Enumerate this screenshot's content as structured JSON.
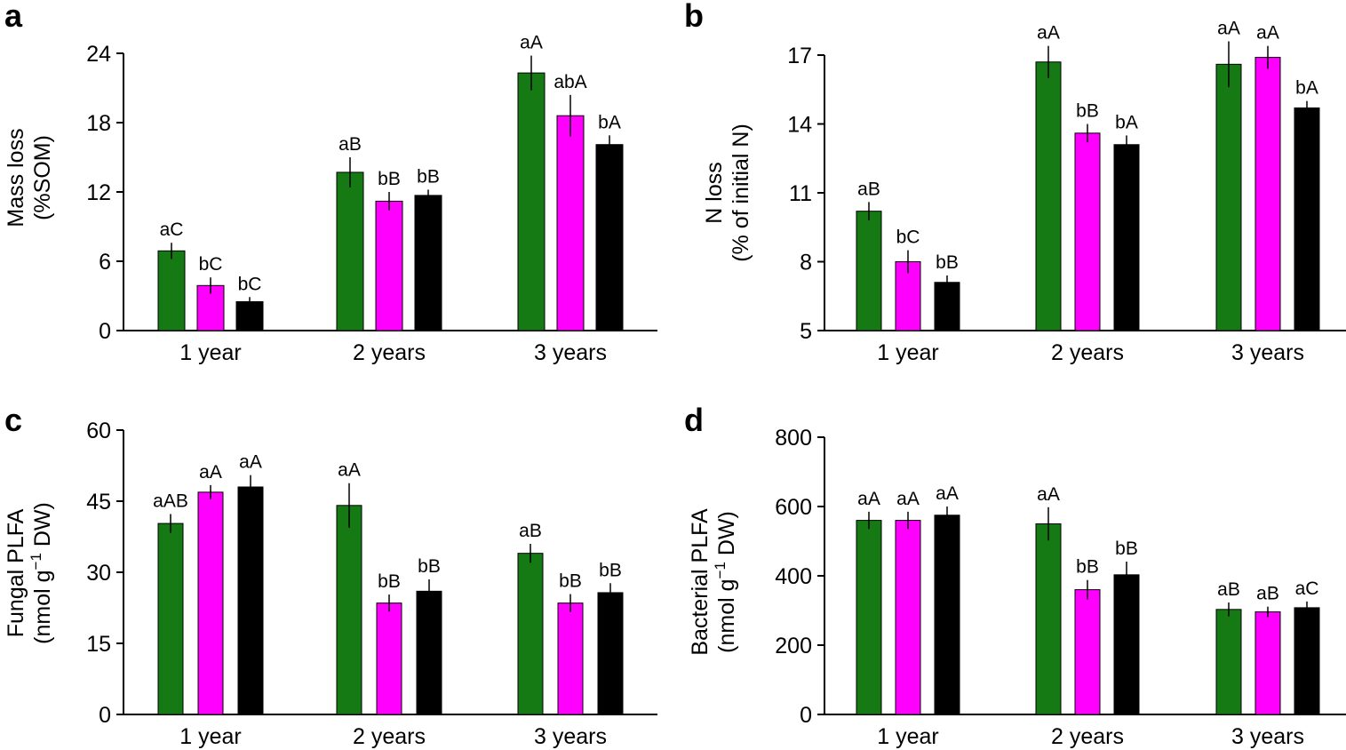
{
  "chart_data": [
    {
      "panel": "a",
      "type": "bar",
      "categories": [
        "1 year",
        "2 years",
        "3 years"
      ],
      "ylabel_line1": "Mass loss",
      "ylabel_line2": "(%SOM)",
      "ylim": [
        0,
        24
      ],
      "yticks": [
        "0",
        "6",
        "12",
        "18",
        "24"
      ],
      "series": [
        {
          "name": "green",
          "color": "#157a14",
          "values": [
            6.9,
            13.7,
            22.3
          ],
          "errors": [
            0.7,
            1.3,
            1.5
          ],
          "labels": [
            "aC",
            "aB",
            "aA"
          ]
        },
        {
          "name": "magenta",
          "color": "#ff00ff",
          "values": [
            3.9,
            11.2,
            18.6
          ],
          "errors": [
            0.7,
            0.8,
            1.8
          ],
          "labels": [
            "bC",
            "bB",
            "abA"
          ]
        },
        {
          "name": "black",
          "color": "#000000",
          "values": [
            2.5,
            11.7,
            16.1
          ],
          "errors": [
            0.4,
            0.5,
            0.8
          ],
          "labels": [
            "bC",
            "bB",
            "bA"
          ]
        }
      ]
    },
    {
      "panel": "b",
      "type": "bar",
      "categories": [
        "1 year",
        "2 years",
        "3 years"
      ],
      "ylabel_line1": "N loss",
      "ylabel_line2": "(% of initial N)",
      "ylim": [
        5,
        17
      ],
      "yticks": [
        "5",
        "8",
        "11",
        "14",
        "17"
      ],
      "series": [
        {
          "name": "green",
          "color": "#157a14",
          "values": [
            10.2,
            16.7,
            16.6
          ],
          "errors": [
            0.4,
            0.7,
            1.0
          ],
          "labels": [
            "aB",
            "aA",
            "aA"
          ]
        },
        {
          "name": "magenta",
          "color": "#ff00ff",
          "values": [
            8.0,
            13.6,
            16.9
          ],
          "errors": [
            0.5,
            0.4,
            0.5
          ],
          "labels": [
            "bC",
            "bB",
            "aA"
          ]
        },
        {
          "name": "black",
          "color": "#000000",
          "values": [
            7.1,
            13.1,
            14.7
          ],
          "errors": [
            0.3,
            0.4,
            0.3
          ],
          "labels": [
            "bB",
            "bA",
            "bA"
          ]
        }
      ]
    },
    {
      "panel": "c",
      "type": "bar",
      "categories": [
        "1 year",
        "2 years",
        "3 years"
      ],
      "ylabel_line1": "Fungal PLFA",
      "ylabel_line2_pre": "(nmol g",
      "ylabel_line2_sup": "−1",
      "ylabel_line2_post": " DW)",
      "ylim": [
        0,
        60
      ],
      "yticks": [
        "0",
        "15",
        "30",
        "45",
        "60"
      ],
      "series": [
        {
          "name": "green",
          "color": "#157a14",
          "values": [
            40.3,
            44.1,
            34.0
          ],
          "errors": [
            2.0,
            4.7,
            2.0
          ],
          "labels": [
            "aAB",
            "aA",
            "aB"
          ]
        },
        {
          "name": "magenta",
          "color": "#ff00ff",
          "values": [
            46.9,
            23.5,
            23.5
          ],
          "errors": [
            1.5,
            1.8,
            1.9
          ],
          "labels": [
            "aA",
            "bB",
            "bB"
          ]
        },
        {
          "name": "black",
          "color": "#000000",
          "values": [
            48.0,
            26.0,
            25.7
          ],
          "errors": [
            2.5,
            2.5,
            2.0
          ],
          "labels": [
            "aA",
            "bB",
            "bB"
          ]
        }
      ]
    },
    {
      "panel": "d",
      "type": "bar",
      "categories": [
        "1 year",
        "2 years",
        "3 years"
      ],
      "ylabel_line1": "Bacterial PLFA",
      "ylabel_line2_pre": "(nmol g",
      "ylabel_line2_sup": "−1",
      "ylabel_line2_post": " DW)",
      "ylim": [
        0,
        800
      ],
      "yticks": [
        "0",
        "200",
        "400",
        "600",
        "800"
      ],
      "series": [
        {
          "name": "green",
          "color": "#157a14",
          "values": [
            560,
            550,
            303
          ],
          "errors": [
            25,
            48,
            20
          ],
          "labels": [
            "aA",
            "aA",
            "aB"
          ]
        },
        {
          "name": "magenta",
          "color": "#ff00ff",
          "values": [
            560,
            360,
            296
          ],
          "errors": [
            25,
            28,
            15
          ],
          "labels": [
            "aA",
            "bB",
            "aB"
          ]
        },
        {
          "name": "black",
          "color": "#000000",
          "values": [
            575,
            403,
            308
          ],
          "errors": [
            25,
            38,
            18
          ],
          "labels": [
            "aA",
            "bB",
            "aC"
          ]
        }
      ]
    }
  ]
}
